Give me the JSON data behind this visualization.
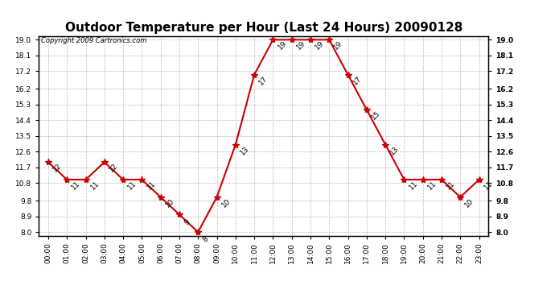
{
  "title": "Outdoor Temperature per Hour (Last 24 Hours) 20090128",
  "copyright_text": "Copyright 2009 Cartronics.com",
  "hours": [
    "00:00",
    "01:00",
    "02:00",
    "03:00",
    "04:00",
    "05:00",
    "06:00",
    "07:00",
    "08:00",
    "09:00",
    "10:00",
    "11:00",
    "12:00",
    "13:00",
    "14:00",
    "15:00",
    "16:00",
    "17:00",
    "18:00",
    "19:00",
    "20:00",
    "21:00",
    "22:00",
    "23:00"
  ],
  "values": [
    12,
    11,
    11,
    12,
    11,
    11,
    10,
    9,
    8,
    10,
    13,
    17,
    19,
    19,
    19,
    19,
    17,
    15,
    13,
    11,
    11,
    11,
    10,
    11
  ],
  "line_color": "#cc0000",
  "marker_color": "#cc0000",
  "marker_style": "*",
  "marker_size": 6,
  "line_width": 1.5,
  "ylim_min": 8.0,
  "ylim_max": 19.0,
  "yticks": [
    8.0,
    8.9,
    9.8,
    10.8,
    11.7,
    12.6,
    13.5,
    14.4,
    15.3,
    16.2,
    17.2,
    18.1,
    19.0
  ],
  "grid_color": "#bbbbbb",
  "grid_style": "--",
  "background_color": "#ffffff",
  "title_fontsize": 11,
  "label_fontsize": 6.5,
  "annotation_fontsize": 6.5,
  "copyright_fontsize": 6
}
